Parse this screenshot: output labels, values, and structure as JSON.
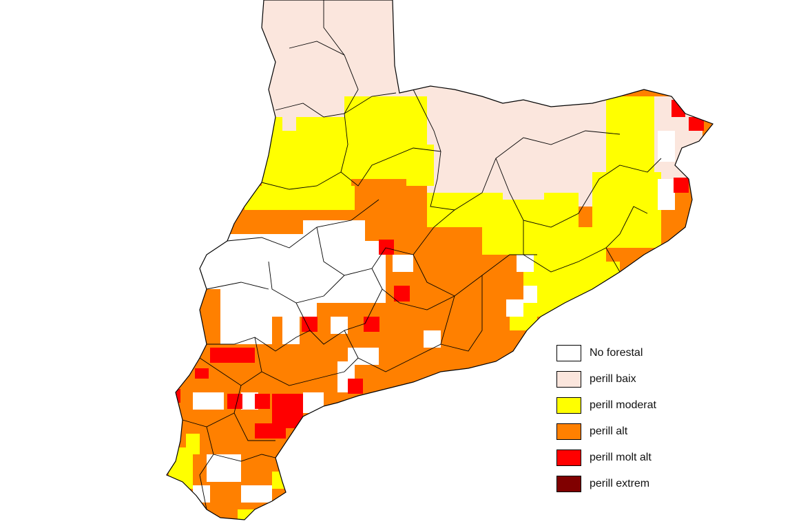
{
  "legend": {
    "items": [
      {
        "label": "No forestal",
        "color": "#ffffff"
      },
      {
        "label": "perill baix",
        "color": "#fbe6dd"
      },
      {
        "label": "perill moderat",
        "color": "#ffff00"
      },
      {
        "label": "perill alt",
        "color": "#ff8000"
      },
      {
        "label": "perill molt alt",
        "color": "#ff0000"
      },
      {
        "label": "perill extrem",
        "color": "#800000"
      }
    ]
  },
  "colors": {
    "border": "#000000",
    "background": "#ffffff"
  }
}
